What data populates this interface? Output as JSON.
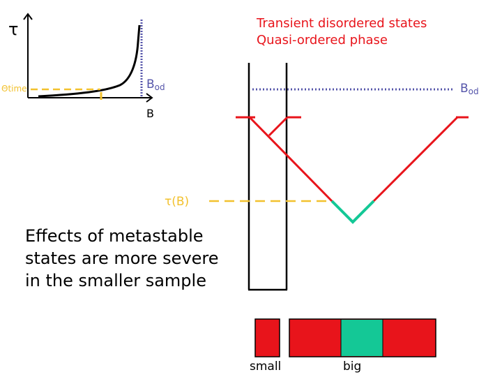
{
  "inset": {
    "y_axis_label": "τ",
    "time_label": "Θtime",
    "x_axis_label": "B",
    "threshold_label": "B",
    "threshold_sub": "od"
  },
  "legend": {
    "line1": "Transient disordered states",
    "line2": "Quasi-ordered phase"
  },
  "main": {
    "threshold_label": "B",
    "threshold_sub": "od",
    "tau_label": "τ(B)"
  },
  "note": {
    "lines": [
      "Effects of metastable",
      "states are more severe",
      "in the smaller sample"
    ]
  },
  "samples": {
    "small_label": "small",
    "big_label": "big"
  },
  "colors": {
    "disordered": "#e8141b",
    "ordered": "#14c896",
    "dashed": "#f2c12e",
    "threshold": "#5555aa"
  }
}
